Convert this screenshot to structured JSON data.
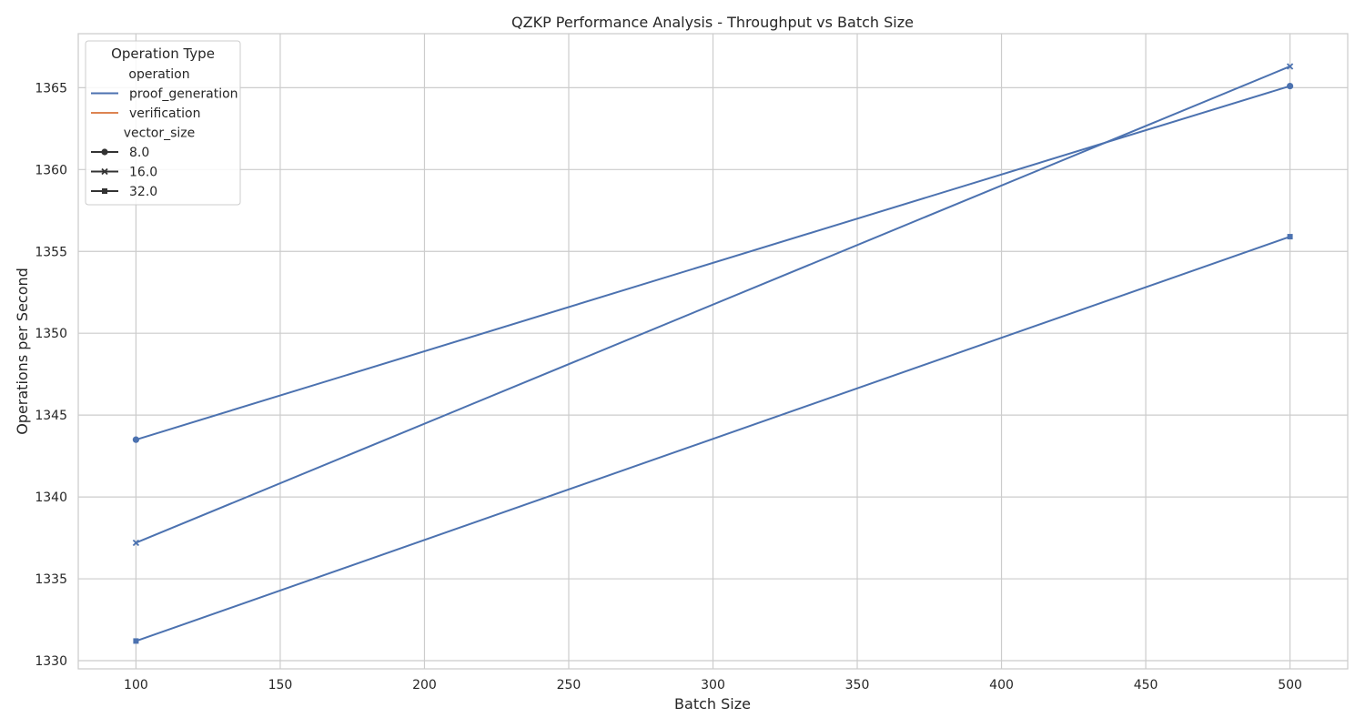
{
  "chart_data": {
    "type": "line",
    "title": "QZKP Performance Analysis - Throughput vs Batch Size",
    "xlabel": "Batch Size",
    "ylabel": "Operations per Second",
    "xlim": [
      80,
      520
    ],
    "ylim": [
      1329.5,
      1368.3
    ],
    "xticks": [
      100,
      150,
      200,
      250,
      300,
      350,
      400,
      450,
      500
    ],
    "yticks": [
      1330,
      1335,
      1340,
      1345,
      1350,
      1355,
      1360,
      1365
    ],
    "grid": true,
    "legend_position": "top-left",
    "colors": {
      "proof_generation": "#4c72b0",
      "verification": "#dd8452",
      "grid": "#cccccc",
      "axes_edge": "#cccccc"
    },
    "series": [
      {
        "operation": "proof_generation",
        "vector_size": "8.0",
        "marker": "circle",
        "x": [
          100,
          500
        ],
        "y": [
          1343.5,
          1365.1
        ]
      },
      {
        "operation": "proof_generation",
        "vector_size": "16.0",
        "marker": "x",
        "x": [
          100,
          500
        ],
        "y": [
          1337.2,
          1366.3
        ]
      },
      {
        "operation": "proof_generation",
        "vector_size": "32.0",
        "marker": "square",
        "x": [
          100,
          500
        ],
        "y": [
          1331.2,
          1355.9
        ]
      }
    ],
    "legend": {
      "title": "Operation Type",
      "groups": [
        {
          "heading": "operation",
          "entries": [
            {
              "label": "proof_generation",
              "color": "#4c72b0"
            },
            {
              "label": "verification",
              "color": "#dd8452"
            }
          ]
        },
        {
          "heading": "vector_size",
          "entries": [
            {
              "label": "8.0",
              "marker": "circle"
            },
            {
              "label": "16.0",
              "marker": "x"
            },
            {
              "label": "32.0",
              "marker": "square"
            }
          ]
        }
      ]
    }
  }
}
